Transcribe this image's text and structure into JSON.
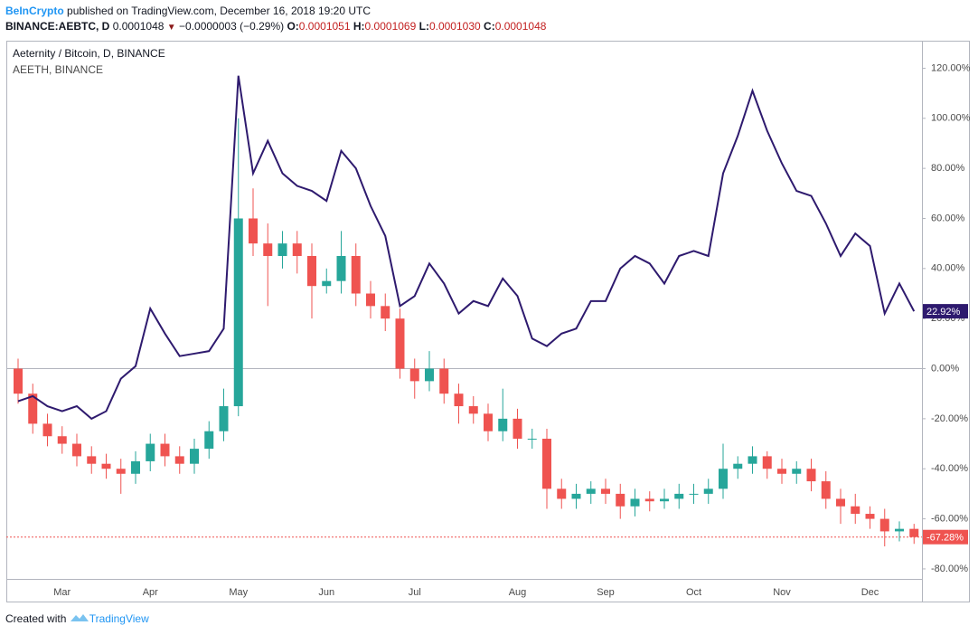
{
  "header": {
    "publisher": "BeInCrypto",
    "published": "published on TradingView.com, December 16, 2018 19:20 UTC",
    "symbol": "BINANCE:AEBTC, D",
    "price": "0.0001048",
    "change": "−0.0000003 (−0.29%)",
    "ohlc": [
      {
        "key": "O:",
        "value": "0.0001051"
      },
      {
        "key": "H:",
        "value": "0.0001069"
      },
      {
        "key": "L:",
        "value": "0.0001030"
      },
      {
        "key": "C:",
        "value": "0.0001048"
      }
    ]
  },
  "footer": {
    "text": "Created with",
    "brand": "TradingView"
  },
  "chart_data": {
    "type": "candlestick",
    "categories": [
      null,
      null,
      null,
      "Mar",
      null,
      null,
      null,
      null,
      null,
      "Apr",
      null,
      null,
      null,
      null,
      null,
      "May",
      null,
      null,
      null,
      null,
      null,
      "Jun",
      null,
      null,
      null,
      null,
      null,
      "Jul",
      null,
      null,
      null,
      null,
      null,
      null,
      "Aug",
      null,
      null,
      null,
      null,
      null,
      "Sep",
      null,
      null,
      null,
      null,
      null,
      "Oct",
      null,
      null,
      null,
      null,
      null,
      "Nov",
      null,
      null,
      null,
      null,
      null,
      "Dec",
      null,
      null,
      null
    ],
    "ylim": [
      -84,
      131
    ],
    "yticks": [
      {
        "value": 120,
        "label": "120.00%"
      },
      {
        "value": 100,
        "label": "100.00%"
      },
      {
        "value": 80,
        "label": "80.00%"
      },
      {
        "value": 60,
        "label": "60.00%"
      },
      {
        "value": 40,
        "label": "40.00%"
      },
      {
        "value": 20,
        "label": "20.00%"
      },
      {
        "value": 0,
        "label": "0.00%"
      },
      {
        "value": -20,
        "label": "-20.00%"
      },
      {
        "value": -40,
        "label": "-40.00%"
      },
      {
        "value": -60,
        "label": "-60.00%"
      },
      {
        "value": -80,
        "label": "-80.00%"
      }
    ],
    "zero_line": true,
    "series": [
      {
        "name": "Aeternity / Bitcoin, D, BINANCE",
        "type": "candlestick",
        "up_color": "#26a69a",
        "down_color": "#ef5350",
        "open": [
          0,
          -10,
          -22,
          -27,
          -30,
          -35,
          -38,
          -40,
          -42,
          -37,
          -30,
          -35,
          -38,
          -32,
          -25,
          -15,
          60,
          50,
          45,
          50,
          45,
          33,
          35,
          45,
          30,
          25,
          20,
          0,
          -5,
          0,
          -10,
          -15,
          -18,
          -25,
          -20,
          -28,
          -28,
          -48,
          -52,
          -50,
          -48,
          -50,
          -55,
          -52,
          -53,
          -52,
          -50,
          -50,
          -48,
          -40,
          -38,
          -35,
          -40,
          -42,
          -40,
          -45,
          -52,
          -55,
          -58,
          -60,
          -65,
          -64
        ],
        "high": [
          4,
          -6,
          -18,
          -23,
          -26,
          -31,
          -34,
          -36,
          -33,
          -26,
          -26,
          -31,
          -28,
          -21,
          -8,
          100,
          72,
          58,
          55,
          55,
          50,
          40,
          55,
          50,
          35,
          30,
          24,
          4,
          7,
          4,
          -6,
          -11,
          -14,
          -8,
          -16,
          -24,
          -24,
          -44,
          -46,
          -45,
          -44,
          -46,
          -48,
          -49,
          -48,
          -46,
          -46,
          -44,
          -30,
          -35,
          -31,
          -33,
          -36,
          -37,
          -36,
          -41,
          -48,
          -50,
          -55,
          -56,
          -61,
          -62
        ],
        "low": [
          -14,
          -26,
          -31,
          -34,
          -39,
          -42,
          -44,
          -50,
          -46,
          -41,
          -39,
          -42,
          -42,
          -36,
          -29,
          -19,
          45,
          25,
          40,
          38,
          20,
          30,
          30,
          25,
          20,
          15,
          -4,
          -12,
          -9,
          -14,
          -22,
          -22,
          -29,
          -29,
          -32,
          -32,
          -56,
          -56,
          -56,
          -54,
          -54,
          -60,
          -59,
          -57,
          -56,
          -56,
          -54,
          -54,
          -52,
          -44,
          -42,
          -44,
          -46,
          -46,
          -49,
          -56,
          -62,
          -62,
          -64,
          -71,
          -69,
          -70
        ],
        "close": [
          -10,
          -22,
          -27,
          -30,
          -35,
          -38,
          -40,
          -42,
          -37,
          -30,
          -35,
          -38,
          -32,
          -25,
          -15,
          60,
          50,
          45,
          50,
          45,
          33,
          35,
          45,
          30,
          25,
          20,
          0,
          -5,
          0,
          -10,
          -15,
          -18,
          -25,
          -20,
          -28,
          -28,
          -48,
          -52,
          -50,
          -48,
          -50,
          -55,
          -52,
          -53,
          -52,
          -50,
          -50,
          -48,
          -40,
          -38,
          -35,
          -40,
          -42,
          -40,
          -45,
          -52,
          -55,
          -58,
          -60,
          -65,
          -64,
          -67.28
        ],
        "last_value_label": "-67.28%"
      },
      {
        "name": "AEETH, BINANCE",
        "type": "line",
        "color": "#2e1a6e",
        "values": [
          -13,
          -11,
          -15,
          -17,
          -15,
          -20,
          -17,
          -4,
          1,
          24,
          14,
          5,
          6,
          7,
          16,
          117,
          78,
          91,
          78,
          73,
          71,
          67,
          87,
          80,
          65,
          53,
          25,
          29,
          42,
          34,
          22,
          27,
          25,
          36,
          29,
          12,
          9,
          14,
          16,
          27,
          27,
          40,
          45,
          42,
          34,
          45,
          47,
          45,
          78,
          93,
          111,
          95,
          82,
          71,
          69,
          58,
          45,
          54,
          49,
          22,
          34,
          22.92
        ],
        "last_value_label": "22.92%"
      }
    ]
  }
}
